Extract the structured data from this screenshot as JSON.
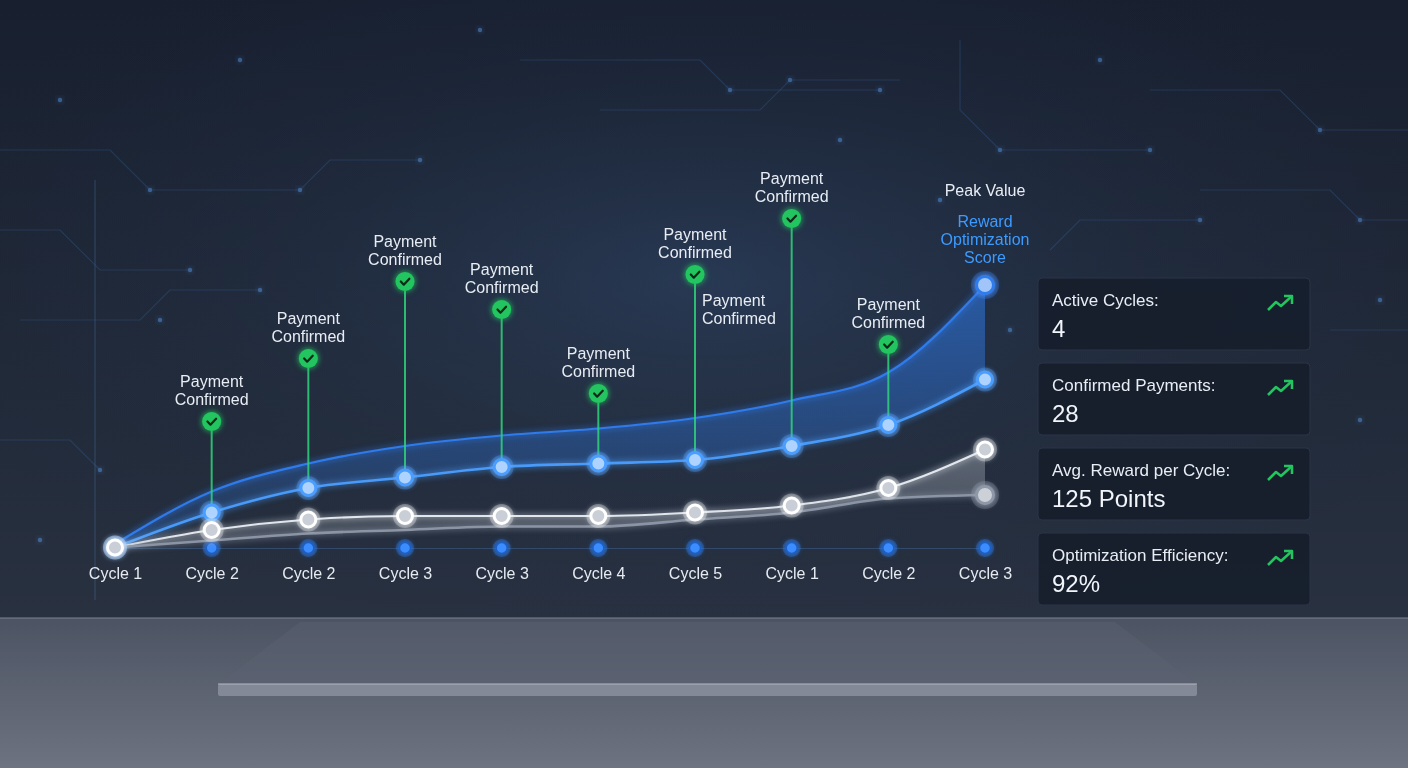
{
  "chart_data": {
    "type": "line",
    "categories": [
      "Cycle 1",
      "Cycle 2",
      "Cycle 2",
      "Cycle 3",
      "Cycle 3",
      "Cycle 4",
      "Cycle 5",
      "Cycle 1",
      "Cycle 2",
      "Cycle 3"
    ],
    "series": [
      {
        "type": "area",
        "color": "#2f7df0",
        "marker": "end",
        "values": [
          16,
          31,
          39,
          44,
          47,
          49,
          52,
          57,
          65,
          90
        ]
      },
      {
        "type": "line",
        "color": "#4a9eff",
        "marker": "circle",
        "values": [
          15,
          25,
          32,
          35,
          38,
          39,
          40,
          44,
          50,
          63
        ]
      },
      {
        "type": "area",
        "color": "#e9edf3",
        "marker": "circle",
        "values": [
          15,
          20,
          23,
          24,
          24,
          24,
          25,
          27,
          32,
          43
        ]
      },
      {
        "type": "line",
        "color": "#8e98a8",
        "marker": "end",
        "values": [
          15,
          17,
          19,
          20,
          21,
          21,
          23,
          25,
          29,
          30
        ]
      }
    ],
    "ylim": [
      0,
      120
    ],
    "tick_labels": "x",
    "payments": [
      {
        "label": "Payment Confirmed",
        "index": 1,
        "value": 51
      },
      {
        "label": "Payment Confirmed",
        "index": 2,
        "value": 69
      },
      {
        "label": "Payment Confirmed",
        "index": 3,
        "value": 91
      },
      {
        "label": "Payment Confirmed",
        "index": 4,
        "value": 83
      },
      {
        "label": "Payment Confirmed",
        "index": 5,
        "value": 59
      },
      {
        "label": "Payment Confirmed",
        "index": 6,
        "value": 93
      },
      {
        "label": "Payment Confirmed",
        "index": 7,
        "value": 109
      },
      {
        "label": "Payment Confirmed",
        "index": 8,
        "value": 73
      }
    ],
    "annotations": [
      {
        "text": "Payment Confirmed",
        "index": 6,
        "value": 83
      },
      {
        "text": "Peak Value",
        "index": 9,
        "value": 117
      },
      {
        "text": "Reward Optimization Score",
        "index": 9,
        "value": 103,
        "color": "#3d9bff"
      }
    ]
  },
  "stats": [
    {
      "label": "Active Cycles:",
      "value": 4
    },
    {
      "label": "Confirmed Payments:",
      "value": 28
    },
    {
      "label": "Avg. Reward per Cycle:",
      "value": "125 Points"
    },
    {
      "label": "Optimization Efficiency:",
      "value": "92%"
    }
  ]
}
